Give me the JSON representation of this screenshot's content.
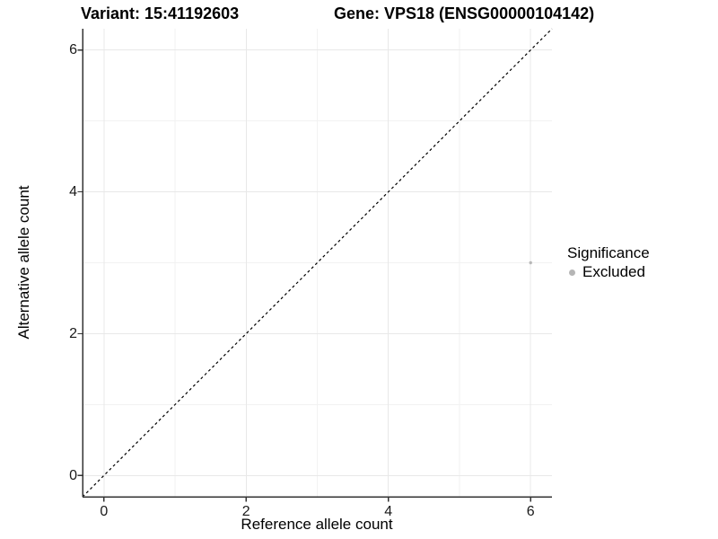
{
  "chart_data": {
    "type": "scatter",
    "title_left": "Variant: 15:41192603",
    "title_right": "Gene: VPS18 (ENSG00000104142)",
    "xlabel": "Reference allele count",
    "ylabel": "Alternative allele count",
    "xlim": [
      -0.3,
      6.3
    ],
    "ylim": [
      -0.3,
      6.3
    ],
    "x_ticks": [
      0,
      2,
      4,
      6
    ],
    "y_ticks": [
      0,
      2,
      4,
      6
    ],
    "x_minor_gridlines": [
      1,
      3,
      5
    ],
    "y_minor_gridlines": [
      1,
      3,
      5
    ],
    "grid": true,
    "points": [
      {
        "x": 6,
        "y": 3,
        "significance": "Excluded",
        "color": "#b8b8b8",
        "radius": 1.7
      }
    ],
    "reference_line": {
      "slope": 1,
      "intercept": 0,
      "linetype": "dashed",
      "color": "#000000"
    },
    "legend": {
      "title": "Significance",
      "position": "right",
      "items": [
        {
          "label": "Excluded",
          "color": "#b5b5b5"
        }
      ]
    },
    "colors": {
      "grid_major": "#e8e8e8",
      "grid_minor": "#f2f2f2",
      "axis_line": "#333333",
      "tick_label": "#1a1a1a"
    }
  }
}
